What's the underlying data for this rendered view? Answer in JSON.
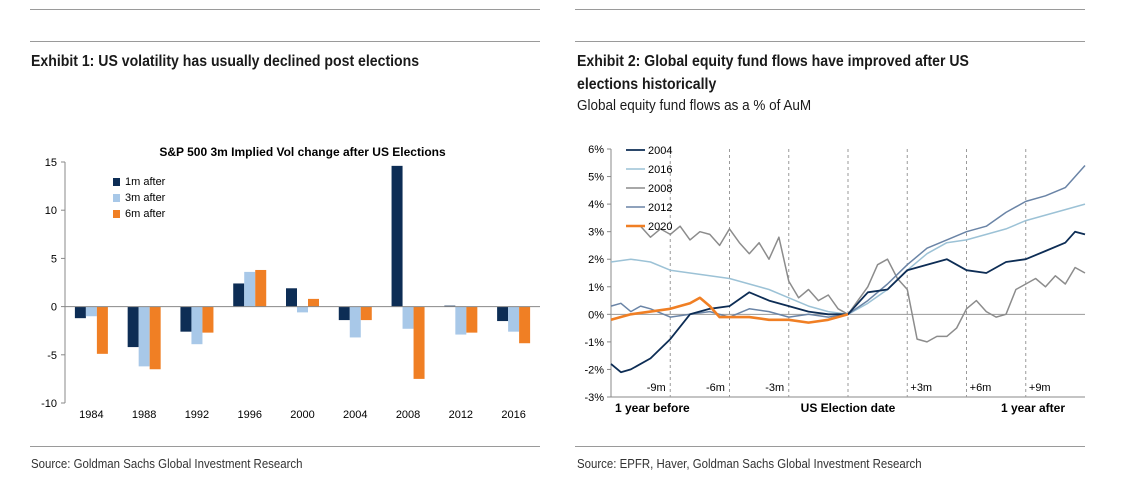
{
  "exhibit1": {
    "title": "Exhibit 1: US volatility has usually declined post elections",
    "source": "Source: Goldman Sachs Global Investment Research"
  },
  "exhibit2": {
    "title_line1": "Exhibit 2: Global equity fund flows have improved after US",
    "title_line2": "elections historically",
    "subtitle": "Global equity fund flows as a % of AuM",
    "source": "Source: EPFR, Haver, Goldman Sachs Global Investment Research"
  },
  "chart_data": [
    {
      "type": "bar",
      "title": "S&P 500 3m Implied Vol change after US Elections",
      "categories": [
        "1984",
        "1988",
        "1992",
        "1996",
        "2000",
        "2004",
        "2008",
        "2012",
        "2016"
      ],
      "series": [
        {
          "name": "1m after",
          "color": "#0d2d55",
          "values": [
            -1.2,
            -4.2,
            -2.6,
            2.4,
            1.9,
            -1.4,
            14.6,
            0.1,
            -1.5
          ]
        },
        {
          "name": "3m after",
          "color": "#a8c8e8",
          "values": [
            -1.0,
            -6.2,
            -3.9,
            3.6,
            -0.6,
            -3.2,
            -2.3,
            -2.9,
            -2.6
          ]
        },
        {
          "name": "6m after",
          "color": "#f07f24",
          "values": [
            -4.9,
            -6.5,
            -2.7,
            3.8,
            0.8,
            -1.4,
            -7.5,
            -2.7,
            -3.8
          ]
        }
      ],
      "ylim": [
        -10,
        15
      ],
      "yticks": [
        "15",
        "10",
        "5",
        "0",
        "-5",
        "-10"
      ],
      "ytick_values": [
        15,
        10,
        5,
        0,
        -5,
        -10
      ],
      "legend_position": "top-left"
    },
    {
      "type": "line",
      "ylim": [
        -3,
        6
      ],
      "yticks": [
        "6%",
        "5%",
        "4%",
        "3%",
        "2%",
        "1%",
        "0%",
        "-1%",
        "-2%",
        "-3%"
      ],
      "ytick_values": [
        6,
        5,
        4,
        3,
        2,
        1,
        0,
        -1,
        -2,
        -3
      ],
      "xlim": [
        -12,
        12
      ],
      "x_markers": [
        -9,
        -6,
        -3,
        0,
        3,
        6,
        9
      ],
      "x_marker_labels": [
        "-9m",
        "-6m",
        "-3m",
        "+3m",
        "+6m",
        "+9m"
      ],
      "x_marker_label_positions": [
        -9,
        -6,
        -3,
        3,
        6,
        9
      ],
      "x_bottom_labels": [
        "1 year before",
        "US Election date",
        "1 year after"
      ],
      "x_bottom_label_positions": [
        -12,
        0,
        12
      ],
      "legend_position": "top-left",
      "series": [
        {
          "name": "2004",
          "color": "#0d2d55",
          "width": 1.8,
          "x": [
            -12,
            -11.5,
            -11,
            -10,
            -9,
            -8,
            -7,
            -6,
            -5,
            -4,
            -3,
            -2,
            -1,
            0,
            1,
            2,
            3,
            4,
            5,
            6,
            7,
            8,
            9,
            10,
            11,
            11.5,
            12
          ],
          "y": [
            -1.8,
            -2.1,
            -2.0,
            -1.6,
            -0.9,
            0.0,
            0.2,
            0.3,
            0.8,
            0.5,
            0.3,
            0.1,
            0.0,
            0.0,
            0.8,
            0.9,
            1.6,
            1.8,
            2.0,
            1.6,
            1.5,
            1.9,
            2.0,
            2.3,
            2.6,
            3.0,
            2.9
          ]
        },
        {
          "name": "2016",
          "color": "#9cc2d6",
          "width": 1.5,
          "x": [
            -12,
            -11,
            -10,
            -9,
            -8,
            -7,
            -6,
            -5,
            -4,
            -3,
            -2,
            -1,
            0,
            1,
            2,
            3,
            4,
            5,
            6,
            7,
            8,
            9,
            10,
            11,
            12
          ],
          "y": [
            1.9,
            2.0,
            1.9,
            1.6,
            1.5,
            1.4,
            1.3,
            1.1,
            0.9,
            0.6,
            0.3,
            0.1,
            0.0,
            0.4,
            0.9,
            1.6,
            2.2,
            2.6,
            2.7,
            2.9,
            3.1,
            3.4,
            3.6,
            3.8,
            4.0
          ]
        },
        {
          "name": "2008",
          "color": "#8c8c8c",
          "width": 1.5,
          "x": [
            -10.5,
            -10,
            -9.5,
            -9,
            -8.5,
            -8,
            -7.5,
            -7,
            -6.5,
            -6,
            -5.5,
            -5,
            -4.5,
            -4,
            -3.5,
            -3,
            -2.5,
            -2,
            -1.5,
            -1,
            -0.5,
            0,
            0.5,
            1,
            1.5,
            2,
            2.5,
            3,
            3.5,
            4,
            4.5,
            5,
            5.5,
            6,
            6.5,
            7,
            7.5,
            8,
            8.5,
            9,
            9.5,
            10,
            10.5,
            11,
            11.5,
            12
          ],
          "y": [
            3.2,
            2.8,
            3.1,
            2.9,
            3.2,
            2.7,
            3.0,
            2.9,
            2.5,
            3.1,
            2.6,
            2.2,
            2.6,
            2.0,
            2.8,
            1.2,
            0.6,
            0.9,
            0.5,
            0.7,
            0.2,
            0.0,
            0.5,
            1.0,
            1.8,
            2.0,
            1.3,
            0.9,
            -0.9,
            -1.0,
            -0.8,
            -0.8,
            -0.5,
            0.2,
            0.5,
            0.1,
            -0.1,
            0.0,
            0.9,
            1.1,
            1.3,
            1.0,
            1.4,
            1.1,
            1.7,
            1.5
          ]
        },
        {
          "name": "2012",
          "color": "#6a84a6",
          "width": 1.5,
          "x": [
            -12,
            -11.5,
            -11,
            -10.5,
            -10,
            -9,
            -8,
            -7,
            -6,
            -5,
            -4,
            -3,
            -2,
            -1,
            0,
            1,
            2,
            3,
            4,
            5,
            6,
            7,
            8,
            9,
            10,
            11,
            11.5,
            12
          ],
          "y": [
            0.3,
            0.4,
            0.1,
            0.3,
            0.2,
            -0.1,
            0.0,
            0.1,
            -0.1,
            0.2,
            0.1,
            -0.1,
            0.0,
            -0.1,
            0.0,
            0.5,
            1.1,
            1.8,
            2.4,
            2.7,
            3.0,
            3.2,
            3.7,
            4.1,
            4.3,
            4.6,
            5.0,
            5.4
          ]
        },
        {
          "name": "2020",
          "color": "#f07f24",
          "width": 2.6,
          "x": [
            -12,
            -11,
            -10,
            -9,
            -8,
            -7.5,
            -7,
            -6.5,
            -6,
            -5,
            -4,
            -3,
            -2,
            -1,
            0
          ],
          "y": [
            -0.2,
            0.0,
            0.1,
            0.2,
            0.4,
            0.6,
            0.3,
            -0.1,
            -0.1,
            -0.1,
            -0.2,
            -0.2,
            -0.3,
            -0.2,
            0.0
          ]
        }
      ]
    }
  ]
}
